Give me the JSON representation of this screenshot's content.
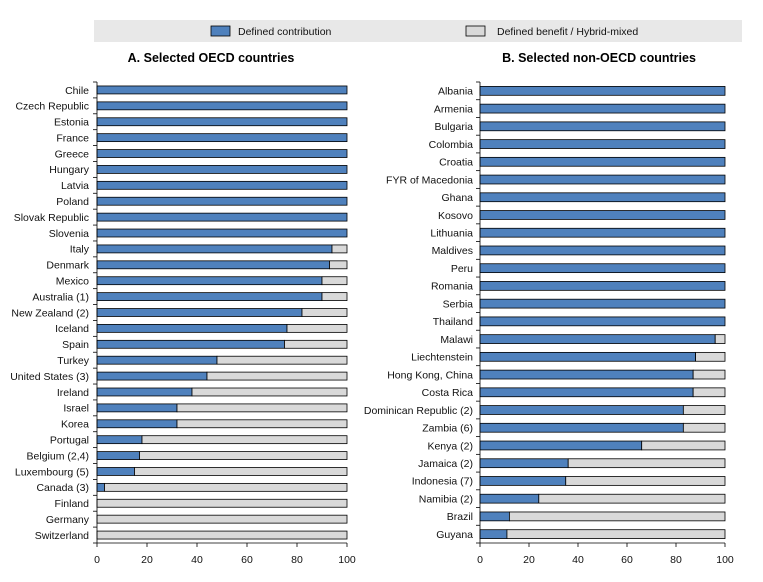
{
  "legend": {
    "entries": [
      {
        "name": "Defined contribution",
        "color": "#4f81bd",
        "icon": "filled-square"
      },
      {
        "name": "Defined benefit  / Hybrid-mixed",
        "color": "#d9d9d9",
        "icon": "filled-square"
      }
    ]
  },
  "chart_data": [
    {
      "type": "bar",
      "orientation": "horizontal",
      "stacked": true,
      "title": "A. Selected OECD countries",
      "xlim": [
        0,
        100
      ],
      "xticks": [
        "0",
        "20",
        "40",
        "60",
        "80",
        "100"
      ],
      "grid": false,
      "legend_position": "top",
      "categories": [
        "Chile",
        "Czech Republic",
        "Estonia",
        "France",
        "Greece",
        "Hungary",
        "Latvia",
        "Poland",
        "Slovak Republic",
        "Slovenia",
        "Italy",
        "Denmark",
        "Mexico",
        "Australia (1)",
        "New Zealand (2)",
        "Iceland",
        "Spain",
        "Turkey",
        "United States (3)",
        "Ireland",
        "Israel",
        "Korea",
        "Portugal",
        "Belgium (2,4)",
        "Luxembourg (5)",
        "Canada (3)",
        "Finland",
        "Germany",
        "Switzerland"
      ],
      "series": [
        {
          "name": "Defined contribution",
          "color": "#4f81bd",
          "values": [
            100,
            100,
            100,
            100,
            100,
            100,
            100,
            100,
            100,
            100,
            94,
            93,
            90,
            90,
            82,
            76,
            75,
            48,
            44,
            38,
            32,
            32,
            18,
            17,
            15,
            3,
            0,
            0,
            0
          ]
        },
        {
          "name": "Defined benefit  / Hybrid-mixed",
          "color": "#d9d9d9",
          "values": [
            0,
            0,
            0,
            0,
            0,
            0,
            0,
            0,
            0,
            0,
            6,
            7,
            10,
            10,
            18,
            24,
            25,
            52,
            56,
            62,
            68,
            68,
            82,
            83,
            85,
            97,
            100,
            100,
            100
          ]
        }
      ]
    },
    {
      "type": "bar",
      "orientation": "horizontal",
      "stacked": true,
      "title": "B. Selected non-OECD countries",
      "xlim": [
        0,
        100
      ],
      "xticks": [
        "0",
        "20",
        "40",
        "60",
        "80",
        "100"
      ],
      "grid": false,
      "legend_position": "top",
      "categories": [
        "Albania",
        "Armenia",
        "Bulgaria",
        "Colombia",
        "Croatia",
        "FYR of Macedonia",
        "Ghana",
        "Kosovo",
        "Lithuania",
        "Maldives",
        "Peru",
        "Romania",
        "Serbia",
        "Thailand",
        "Malawi",
        "Liechtenstein",
        "Hong Kong, China",
        "Costa Rica",
        "Dominican Republic (2)",
        "Zambia (6)",
        "Kenya (2)",
        "Jamaica (2)",
        "Indonesia (7)",
        "Namibia (2)",
        "Brazil",
        "Guyana"
      ],
      "series": [
        {
          "name": "Defined contribution",
          "color": "#4f81bd",
          "values": [
            100,
            100,
            100,
            100,
            100,
            100,
            100,
            100,
            100,
            100,
            100,
            100,
            100,
            100,
            96,
            88,
            87,
            87,
            83,
            83,
            66,
            36,
            35,
            24,
            12,
            11
          ]
        },
        {
          "name": "Defined benefit  / Hybrid-mixed",
          "color": "#d9d9d9",
          "values": [
            0,
            0,
            0,
            0,
            0,
            0,
            0,
            0,
            0,
            0,
            0,
            0,
            0,
            0,
            4,
            12,
            13,
            13,
            17,
            17,
            34,
            64,
            65,
            76,
            88,
            89
          ]
        }
      ]
    }
  ]
}
